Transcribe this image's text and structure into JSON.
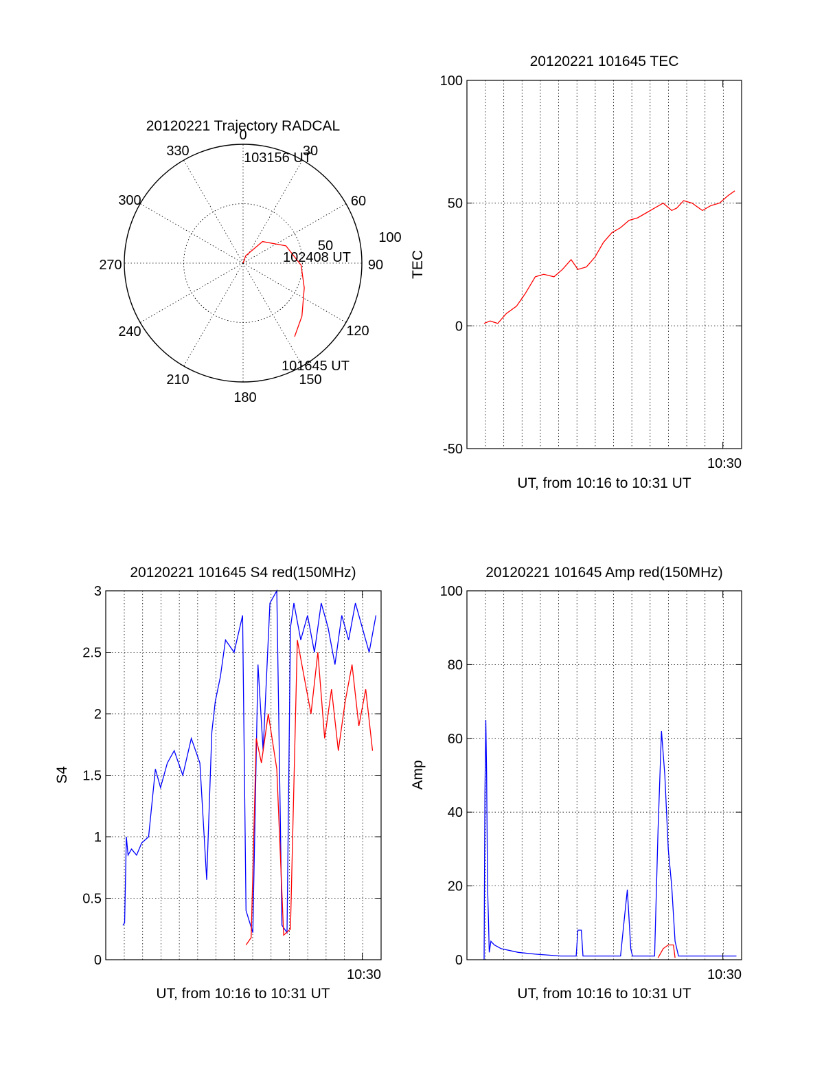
{
  "chart_data": [
    {
      "type": "polar",
      "title": "20120221 Trajectory RADCAL",
      "angle_labels": [
        "0",
        "30",
        "60",
        "90",
        "120",
        "150",
        "180",
        "210",
        "240",
        "270",
        "300",
        "330"
      ],
      "radius_labels": [
        "50",
        "100"
      ],
      "rlim": [
        0,
        100
      ],
      "annotations": [
        "103156 UT",
        "102408 UT",
        "101645 UT"
      ],
      "series": [
        {
          "color": "#ff0000",
          "points": [
            {
              "az": 145,
              "el": 22
            },
            {
              "az": 132,
              "el": 30
            },
            {
              "az": 112,
              "el": 40
            },
            {
              "az": 92,
              "el": 46
            },
            {
              "az": 68,
              "el": 55
            },
            {
              "az": 42,
              "el": 68
            },
            {
              "az": 20,
              "el": 84
            },
            {
              "az": 0,
              "el": 90
            }
          ]
        }
      ]
    },
    {
      "type": "line",
      "title": "20120221 101645 TEC",
      "xlabel": "UT, from 10:16 to 10:31 UT",
      "ylabel": "TEC",
      "xlim": [
        10.267,
        10.5186
      ],
      "ylim": [
        -50,
        100
      ],
      "yticks": [
        "100",
        "50",
        "0",
        "-50"
      ],
      "xtick_label": "10:30",
      "series": [
        {
          "color": "#ff0000",
          "x_minutes": [
            0.0,
            0.35,
            0.8,
            1.3,
            1.9,
            2.4,
            3.0,
            3.5,
            4.1,
            4.6,
            5.1,
            5.5,
            6.0,
            6.5,
            7.0,
            7.5,
            8.0,
            8.5,
            9.0,
            9.5,
            10.0,
            10.5,
            11.0,
            11.3,
            11.7,
            12.2,
            12.8,
            13.3,
            13.8,
            14.3,
            14.7
          ],
          "values": [
            1,
            2,
            1,
            5,
            8,
            13,
            20,
            21,
            20,
            23,
            27,
            23,
            24,
            28,
            34,
            38,
            40,
            43,
            44,
            46,
            48,
            50,
            47,
            48,
            51,
            50,
            47,
            49,
            50,
            53,
            55
          ]
        }
      ]
    },
    {
      "type": "line",
      "title": "20120221 101645 S4 red(150MHz)",
      "xlabel": "UT, from 10:16 to 10:31 UT",
      "ylabel": "S4",
      "xlim": [
        10.267,
        10.5186
      ],
      "ylim": [
        0,
        3
      ],
      "yticks": [
        "3",
        "2.5",
        "2",
        "1.5",
        "1",
        "0.5",
        "0"
      ],
      "xtick_label": "10:30",
      "series": [
        {
          "color": "#0000ff",
          "x_minutes": [
            0.0,
            0.1,
            0.2,
            0.3,
            0.5,
            0.8,
            1.1,
            1.5,
            1.9,
            2.2,
            2.6,
            3.0,
            3.5,
            4.0,
            4.5,
            4.9,
            5.2,
            5.4,
            5.7,
            6.0,
            6.5,
            7.0,
            7.2,
            7.6,
            7.9,
            8.2,
            8.6,
            9.0,
            9.3,
            9.6,
            9.8,
            10.0,
            10.4,
            10.8,
            11.2,
            11.6,
            12.0,
            12.4,
            12.8,
            13.2,
            13.6,
            14.0,
            14.4,
            14.8
          ],
          "values": [
            0.28,
            0.3,
            1.0,
            0.85,
            0.9,
            0.85,
            0.95,
            1.0,
            1.55,
            1.4,
            1.6,
            1.7,
            1.5,
            1.8,
            1.6,
            0.65,
            1.85,
            2.1,
            2.3,
            2.6,
            2.5,
            2.8,
            0.4,
            0.22,
            2.4,
            1.7,
            2.9,
            3.0,
            0.28,
            0.22,
            2.7,
            2.9,
            2.6,
            2.8,
            2.5,
            2.9,
            2.7,
            2.4,
            2.8,
            2.6,
            2.9,
            2.7,
            2.5,
            2.8
          ]
        },
        {
          "color": "#ff0000",
          "x_minutes": [
            7.2,
            7.5,
            7.8,
            8.1,
            8.5,
            9.0,
            9.4,
            9.8,
            10.2,
            10.6,
            11.0,
            11.4,
            11.8,
            12.2,
            12.6,
            13.0,
            13.4,
            13.8,
            14.2,
            14.6
          ],
          "values": [
            0.12,
            0.18,
            1.8,
            1.6,
            2.0,
            1.55,
            0.2,
            0.25,
            2.6,
            2.3,
            2.0,
            2.5,
            1.8,
            2.2,
            1.7,
            2.1,
            2.4,
            1.9,
            2.2,
            1.7
          ]
        }
      ]
    },
    {
      "type": "line",
      "title": "20120221 101645 Amp red(150MHz)",
      "xlabel": "UT, from 10:16 to 10:31 UT",
      "ylabel": "Amp",
      "xlim": [
        10.267,
        10.5186
      ],
      "ylim": [
        0,
        100
      ],
      "yticks": [
        "100",
        "80",
        "60",
        "40",
        "20",
        "0"
      ],
      "xtick_label": "10:30",
      "series": [
        {
          "color": "#0000ff",
          "x_minutes": [
            0.0,
            0.05,
            0.1,
            0.15,
            0.2,
            0.25,
            0.3,
            0.4,
            0.6,
            1.0,
            2.0,
            3.0,
            4.5,
            5.4,
            5.5,
            5.7,
            5.8,
            6.0,
            7.0,
            8.0,
            8.2,
            8.4,
            8.6,
            8.7,
            9.0,
            10.0,
            10.2,
            10.4,
            10.6,
            10.8,
            11.0,
            11.2,
            11.4,
            11.6,
            12.0,
            13.0,
            14.0,
            14.8
          ],
          "values": [
            0,
            45,
            65,
            50,
            20,
            12,
            2,
            5,
            4,
            3,
            2,
            1.5,
            1,
            1,
            8,
            8,
            1,
            1,
            1,
            1,
            10,
            19,
            3,
            1,
            1,
            1,
            35,
            62,
            50,
            30,
            20,
            5,
            1,
            1,
            1,
            1,
            1,
            1
          ]
        },
        {
          "color": "#ff0000",
          "x_minutes": [
            10.2,
            10.5,
            10.8,
            11.1,
            11.2
          ],
          "values": [
            0.5,
            3,
            4,
            4,
            0.5
          ]
        }
      ]
    }
  ]
}
